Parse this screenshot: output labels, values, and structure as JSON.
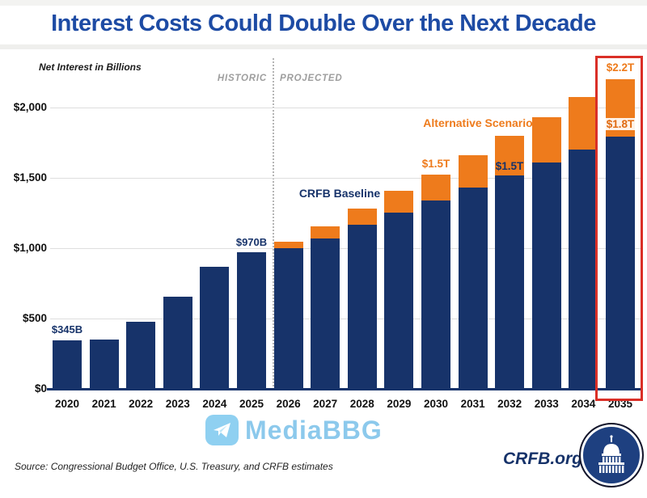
{
  "title": "Interest Costs Could Double Over the Next Decade",
  "chart": {
    "y_axis_title": "Net Interest in Billions",
    "historic_label": "HISTORIC",
    "projected_label": "PROJECTED",
    "annotations": {
      "bar_2020": "$345B",
      "bar_2025": "$970B",
      "baseline_series": "CRFB Baseline",
      "alternative_series": "Alternative Scenario",
      "alt_2030": "$1.5T",
      "baseline_2032": "$1.5T",
      "alt_2035": "$2.2T",
      "baseline_2035": "$1.8T"
    }
  },
  "chart_data": {
    "type": "bar",
    "stacked": true,
    "title": "Interest Costs Could Double Over the Next Decade",
    "ylabel": "Net Interest in Billions",
    "ylim": [
      0,
      2250
    ],
    "y_ticks": [
      {
        "value": 2000,
        "label": "$2,000"
      },
      {
        "value": 1500,
        "label": "$1,500"
      },
      {
        "value": 1000,
        "label": "$1,000"
      },
      {
        "value": 500,
        "label": "$500"
      },
      {
        "value": 0,
        "label": "$0"
      }
    ],
    "gridline_values": [
      500,
      1000,
      1500,
      2000
    ],
    "categories": [
      "2020",
      "2021",
      "2022",
      "2023",
      "2024",
      "2025",
      "2026",
      "2027",
      "2028",
      "2029",
      "2030",
      "2031",
      "2032",
      "2033",
      "2034",
      "2035"
    ],
    "series": [
      {
        "name": "CRFB Baseline",
        "color": "#17336a",
        "values": [
          345,
          350,
          475,
          655,
          870,
          970,
          1000,
          1070,
          1165,
          1255,
          1340,
          1430,
          1520,
          1610,
          1700,
          1795
        ]
      },
      {
        "name": "Alternative Scenario (increment above baseline)",
        "color": "#ee7b1c",
        "values": [
          0,
          0,
          0,
          0,
          0,
          0,
          45,
          85,
          115,
          155,
          185,
          230,
          280,
          320,
          375,
          405
        ]
      }
    ],
    "alternative_scenario_totals": [
      null,
      null,
      null,
      null,
      null,
      null,
      1045,
      1155,
      1280,
      1410,
      1525,
      1660,
      1800,
      1930,
      2075,
      2200
    ],
    "historic_years": [
      "2020",
      "2021",
      "2022",
      "2023",
      "2024",
      "2025"
    ],
    "projected_years": [
      "2026",
      "2027",
      "2028",
      "2029",
      "2030",
      "2031",
      "2032",
      "2033",
      "2034",
      "2035"
    ],
    "highlighted_year": "2035",
    "data_labels": [
      {
        "year": "2020",
        "series": "baseline",
        "text": "$345B"
      },
      {
        "year": "2025",
        "series": "baseline",
        "text": "$970B"
      },
      {
        "year": "2030",
        "series": "alternative",
        "text": "$1.5T"
      },
      {
        "year": "2032",
        "series": "baseline",
        "text": "$1.5T"
      },
      {
        "year": "2035",
        "series": "alternative",
        "text": "$2.2T"
      },
      {
        "year": "2035",
        "series": "baseline",
        "text": "$1.8T"
      }
    ]
  },
  "footer": {
    "source": "Source: Congressional Budget Office, U.S. Treasury, and CRFB estimates",
    "site": "CRFB.org",
    "watermark": "MediaBBG"
  },
  "colors": {
    "baseline_navy": "#17336a",
    "alternative_orange": "#ee7b1c",
    "title_blue": "#1d4ba4",
    "highlight_red": "#da2f27",
    "phase_gray": "#9e9e9e",
    "watermark_blue": "#8cc9ec",
    "logo_navy": "#1e4080"
  }
}
